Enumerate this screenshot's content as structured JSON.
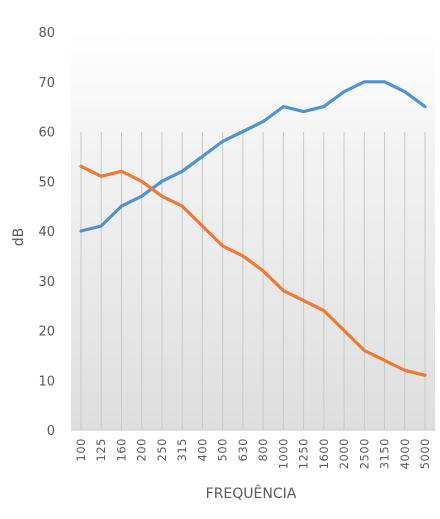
{
  "chart_data": {
    "type": "line",
    "categories": [
      "100",
      "125",
      "160",
      "200",
      "250",
      "315",
      "400",
      "500",
      "630",
      "800",
      "1000",
      "1250",
      "1600",
      "2000",
      "2500",
      "3150",
      "4000",
      "5000"
    ],
    "series": [
      {
        "color": "#4f94d0",
        "values": [
          40,
          41,
          45,
          47,
          50,
          52,
          55,
          58,
          60,
          62,
          65,
          64,
          65,
          68,
          70,
          70,
          68,
          65
        ]
      },
      {
        "color": "#ec7a34",
        "values": [
          53,
          51,
          52,
          50,
          47,
          45,
          41,
          37,
          35,
          32,
          28,
          26,
          24,
          20,
          16,
          14,
          12,
          11
        ]
      }
    ],
    "yticks": [
      "0",
      "10",
      "20",
      "30",
      "40",
      "50",
      "60",
      "70",
      "80"
    ],
    "xlabel": "FREQUÊNCIA",
    "ylabel": "dB",
    "ylim": [
      0,
      80
    ],
    "grid": "vertical"
  }
}
